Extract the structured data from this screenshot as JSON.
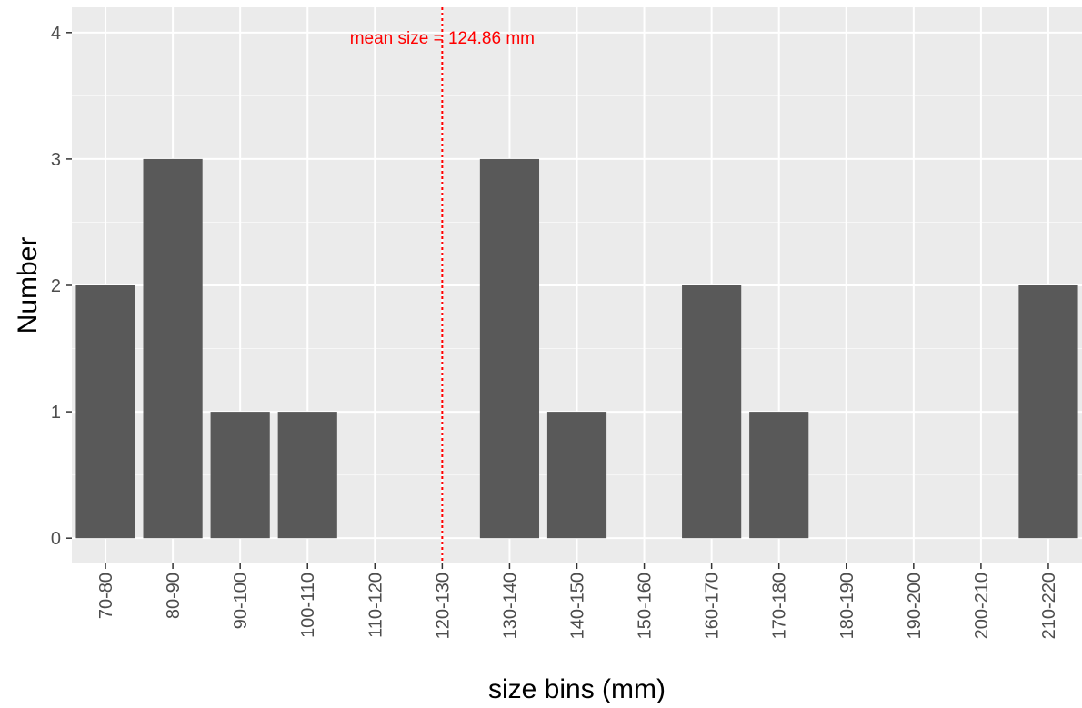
{
  "chart_data": {
    "type": "bar",
    "categories": [
      "70-80",
      "80-90",
      "90-100",
      "100-110",
      "110-120",
      "120-130",
      "130-140",
      "140-150",
      "150-160",
      "160-170",
      "170-180",
      "180-190",
      "190-200",
      "200-210",
      "210-220"
    ],
    "values": [
      2,
      3,
      1,
      1,
      0,
      0,
      3,
      1,
      0,
      2,
      1,
      0,
      0,
      0,
      2
    ],
    "xlabel": "size bins (mm)",
    "ylabel": "Number",
    "ylim": [
      -0.2,
      4.2
    ],
    "yticks": [
      0,
      1,
      2,
      3,
      4
    ],
    "grid": true,
    "mean_line": {
      "value": 124.86,
      "bin_position": 5,
      "label": "mean size = 124.86 mm"
    },
    "colors": {
      "bar": "#595959",
      "panel": "#ebebeb",
      "grid": "#ffffff",
      "mean": "#ff0000"
    }
  }
}
